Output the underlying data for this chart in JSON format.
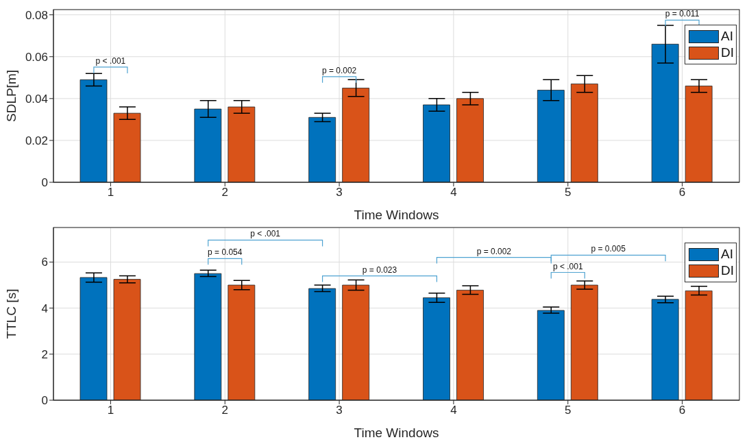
{
  "chart_data": [
    {
      "type": "bar",
      "categories": [
        "1",
        "2",
        "3",
        "4",
        "5",
        "6"
      ],
      "xlabel": "Time Windows",
      "ylabel": "SDLP[m]",
      "ylim": [
        0,
        0.0825
      ],
      "yticks": [
        0,
        0.02,
        0.04,
        0.06,
        0.08
      ],
      "grid": true,
      "legend": "top right",
      "series": [
        {
          "name": "AI",
          "color": "#0072bd",
          "values": [
            0.049,
            0.035,
            0.031,
            0.037,
            0.044,
            0.066
          ],
          "errors": [
            [
              0.046,
              0.052
            ],
            [
              0.031,
              0.039
            ],
            [
              0.029,
              0.033
            ],
            [
              0.034,
              0.04
            ],
            [
              0.039,
              0.049
            ],
            [
              0.057,
              0.075
            ]
          ]
        },
        {
          "name": "DI",
          "color": "#d95319",
          "values": [
            0.033,
            0.036,
            0.045,
            0.04,
            0.047,
            0.046
          ],
          "errors": [
            [
              0.03,
              0.036
            ],
            [
              0.033,
              0.039
            ],
            [
              0.041,
              0.049
            ],
            [
              0.037,
              0.043
            ],
            [
              0.043,
              0.051
            ],
            [
              0.043,
              0.049
            ]
          ]
        }
      ],
      "annotations": [
        "p < .001",
        "p = 0.002",
        "p = 0.011"
      ]
    },
    {
      "type": "bar",
      "categories": [
        "1",
        "2",
        "3",
        "4",
        "5",
        "6"
      ],
      "xlabel": "Time Windows",
      "ylabel": "TTLC [s]",
      "ylim": [
        0,
        7.5
      ],
      "yticks": [
        0,
        2,
        4,
        6
      ],
      "grid": true,
      "legend": "top right",
      "series": [
        {
          "name": "AI",
          "color": "#0072bd",
          "values": [
            5.33,
            5.5,
            4.85,
            4.45,
            3.9,
            4.38
          ],
          "errors": [
            [
              5.13,
              5.53
            ],
            [
              5.37,
              5.65
            ],
            [
              4.72,
              5.0
            ],
            [
              4.25,
              4.65
            ],
            [
              3.78,
              4.05
            ],
            [
              4.23,
              4.52
            ]
          ]
        },
        {
          "name": "DI",
          "color": "#d95319",
          "values": [
            5.25,
            5.0,
            5.0,
            4.78,
            5.0,
            4.75
          ],
          "errors": [
            [
              5.1,
              5.4
            ],
            [
              4.8,
              5.2
            ],
            [
              4.78,
              5.22
            ],
            [
              4.6,
              4.97
            ],
            [
              4.82,
              5.18
            ],
            [
              4.57,
              4.95
            ]
          ]
        }
      ],
      "annotations": [
        "p < .001",
        "p = 0.054",
        "p = 0.023",
        "p = 0.002",
        "p < .001",
        "p = 0.005"
      ]
    }
  ]
}
